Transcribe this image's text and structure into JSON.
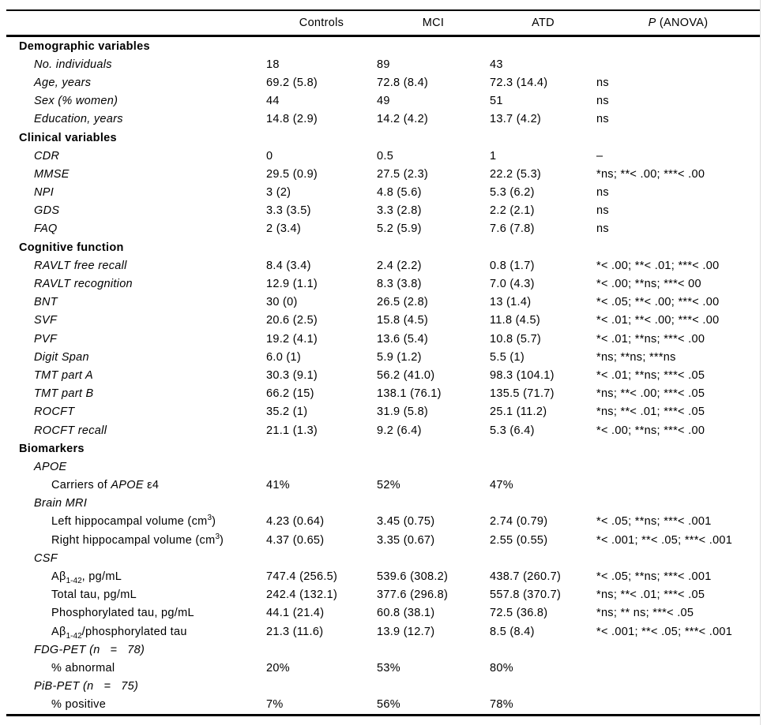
{
  "colors": {
    "background": "#ffffff",
    "text": "#000000",
    "rule": "#000000"
  },
  "table": {
    "header": {
      "label_col": "",
      "controls": "Controls",
      "mci": "MCI",
      "atd": "ATD",
      "p_italic": "P",
      "p_rest": " (ANOVA)"
    },
    "rows": [
      {
        "style": "section",
        "label": "Demographic variables",
        "values": [
          "",
          "",
          "",
          ""
        ]
      },
      {
        "style": "item",
        "label": "No. individuals",
        "values": [
          "18",
          "89",
          "43",
          ""
        ]
      },
      {
        "style": "item",
        "label": "Age, years",
        "values": [
          "69.2 (5.8)",
          "72.8 (8.4)",
          "72.3 (14.4)",
          "ns"
        ]
      },
      {
        "style": "item",
        "label": "Sex (% women)",
        "values": [
          "44",
          "49",
          "51",
          "ns"
        ]
      },
      {
        "style": "item",
        "label": "Education, years",
        "values": [
          "14.8 (2.9)",
          "14.2 (4.2)",
          "13.7 (4.2)",
          "ns"
        ]
      },
      {
        "style": "section",
        "label": "Clinical variables",
        "values": [
          "",
          "",
          "",
          ""
        ]
      },
      {
        "style": "item",
        "label": "CDR",
        "values": [
          "0",
          "0.5",
          "1",
          "–"
        ]
      },
      {
        "style": "item",
        "label": "MMSE",
        "values": [
          "29.5 (0.9)",
          "27.5 (2.3)",
          "22.2 (5.3)",
          "*ns; **< .00; ***< .00"
        ]
      },
      {
        "style": "item",
        "label": "NPI",
        "values": [
          "3 (2)",
          "4.8 (5.6)",
          "5.3 (6.2)",
          "ns"
        ]
      },
      {
        "style": "item",
        "label": "GDS",
        "values": [
          "3.3 (3.5)",
          "3.3 (2.8)",
          "2.2 (2.1)",
          "ns"
        ]
      },
      {
        "style": "item",
        "label": "FAQ",
        "values": [
          "2 (3.4)",
          "5.2 (5.9)",
          "7.6 (7.8)",
          "ns"
        ]
      },
      {
        "style": "section",
        "label": "Cognitive function",
        "values": [
          "",
          "",
          "",
          ""
        ]
      },
      {
        "style": "item",
        "label": "RAVLT free recall",
        "values": [
          "8.4 (3.4)",
          "2.4 (2.2)",
          "0.8 (1.7)",
          "*< .00; **< .01; ***< .00"
        ]
      },
      {
        "style": "item",
        "label": "RAVLT recognition",
        "values": [
          "12.9 (1.1)",
          "8.3 (3.8)",
          "7.0 (4.3)",
          "*< .00; **ns; ***< 00"
        ]
      },
      {
        "style": "item",
        "label": "BNT",
        "values": [
          "30 (0)",
          "26.5 (2.8)",
          "13 (1.4)",
          "*< .05; **< .00; ***< .00"
        ]
      },
      {
        "style": "item",
        "label": "SVF",
        "values": [
          "20.6 (2.5)",
          "15.8 (4.5)",
          "11.8 (4.5)",
          "*< .01; **< .00; ***< .00"
        ]
      },
      {
        "style": "item",
        "label": "PVF",
        "values": [
          "19.2 (4.1)",
          "13.6 (5.4)",
          "10.8 (5.7)",
          "*< .01; **ns; ***< .00"
        ]
      },
      {
        "style": "item",
        "label": "Digit Span",
        "values": [
          "6.0 (1)",
          "5.9 (1.2)",
          "5.5 (1)",
          "*ns; **ns; ***ns"
        ]
      },
      {
        "style": "item",
        "label": "TMT part A",
        "values": [
          "30.3 (9.1)",
          "56.2 (41.0)",
          "98.3 (104.1)",
          "*< .01; **ns; ***< .05"
        ]
      },
      {
        "style": "item",
        "label": "TMT part B",
        "values": [
          "66.2 (15)",
          "138.1 (76.1)",
          "135.5 (71.7)",
          "*ns; **< .00; ***< .05"
        ]
      },
      {
        "style": "item",
        "label": "ROCFT",
        "values": [
          "35.2 (1)",
          "31.9 (5.8)",
          "25.1 (11.2)",
          "*ns; **< .01; ***< .05"
        ]
      },
      {
        "style": "item",
        "label": "ROCFT recall",
        "values": [
          "21.1 (1.3)",
          "9.2 (6.4)",
          "5.3 (6.4)",
          "*< .00; **ns; ***< .00"
        ]
      },
      {
        "style": "section",
        "label": "Biomarkers",
        "values": [
          "",
          "",
          "",
          ""
        ]
      },
      {
        "style": "item",
        "label": "APOE",
        "values": [
          "",
          "",
          "",
          ""
        ]
      },
      {
        "style": "subitem",
        "parts": [
          {
            "t": "Carriers of ",
            "s": "n"
          },
          {
            "t": "APOE",
            "s": "i"
          },
          {
            "t": " ε4",
            "s": "n"
          }
        ],
        "values": [
          "41%",
          "52%",
          "47%",
          ""
        ]
      },
      {
        "style": "item",
        "label": "Brain MRI",
        "values": [
          "",
          "",
          "",
          ""
        ]
      },
      {
        "style": "subitem",
        "parts": [
          {
            "t": "Left hippocampal volume (cm",
            "s": "n"
          },
          {
            "t": "3",
            "s": "sup"
          },
          {
            "t": ")",
            "s": "n"
          }
        ],
        "values": [
          "4.23 (0.64)",
          "3.45 (0.75)",
          "2.74 (0.79)",
          "*< .05; **ns; ***< .001"
        ]
      },
      {
        "style": "subitem",
        "parts": [
          {
            "t": "Right hippocampal volume (cm",
            "s": "n"
          },
          {
            "t": "3",
            "s": "sup"
          },
          {
            "t": ")",
            "s": "n"
          }
        ],
        "values": [
          "4.37 (0.65)",
          "3.35 (0.67)",
          "2.55 (0.55)",
          "*< .001; **< .05; ***< .001"
        ]
      },
      {
        "style": "item",
        "label": "CSF",
        "values": [
          "",
          "",
          "",
          ""
        ]
      },
      {
        "style": "subitem",
        "parts": [
          {
            "t": "Aβ",
            "s": "n"
          },
          {
            "t": "1-42",
            "s": "sub"
          },
          {
            "t": ", pg/mL",
            "s": "n"
          }
        ],
        "values": [
          "747.4 (256.5)",
          "539.6 (308.2)",
          "438.7 (260.7)",
          "*< .05; **ns; ***< .001"
        ]
      },
      {
        "style": "subitem",
        "label": "Total tau, pg/mL",
        "values": [
          "242.4 (132.1)",
          "377.6 (296.8)",
          "557.8 (370.7)",
          "*ns; **< .01; ***< .05"
        ]
      },
      {
        "style": "subitem",
        "label": "Phosphorylated tau, pg/mL",
        "values": [
          "44.1 (21.4)",
          "60.8 (38.1)",
          "72.5 (36.8)",
          "*ns; ** ns; ***< .05"
        ]
      },
      {
        "style": "subitem",
        "parts": [
          {
            "t": "Aβ",
            "s": "n"
          },
          {
            "t": "1-42",
            "s": "sub"
          },
          {
            "t": "/phosphorylated tau",
            "s": "n"
          }
        ],
        "values": [
          "21.3 (11.6)",
          "13.9 (12.7)",
          "8.5 (8.4)",
          "*< .001; **< .05; ***< .001"
        ]
      },
      {
        "style": "item",
        "label": "FDG-PET (n   =   78)",
        "values": [
          "",
          "",
          "",
          ""
        ]
      },
      {
        "style": "subitem",
        "label": "% abnormal",
        "values": [
          "20%",
          "53%",
          "80%",
          ""
        ]
      },
      {
        "style": "item",
        "label": "PiB-PET (n   =   75)",
        "values": [
          "",
          "",
          "",
          ""
        ]
      },
      {
        "style": "subitem",
        "label": "% positive",
        "values": [
          "7%",
          "56%",
          "78%",
          ""
        ]
      }
    ]
  }
}
